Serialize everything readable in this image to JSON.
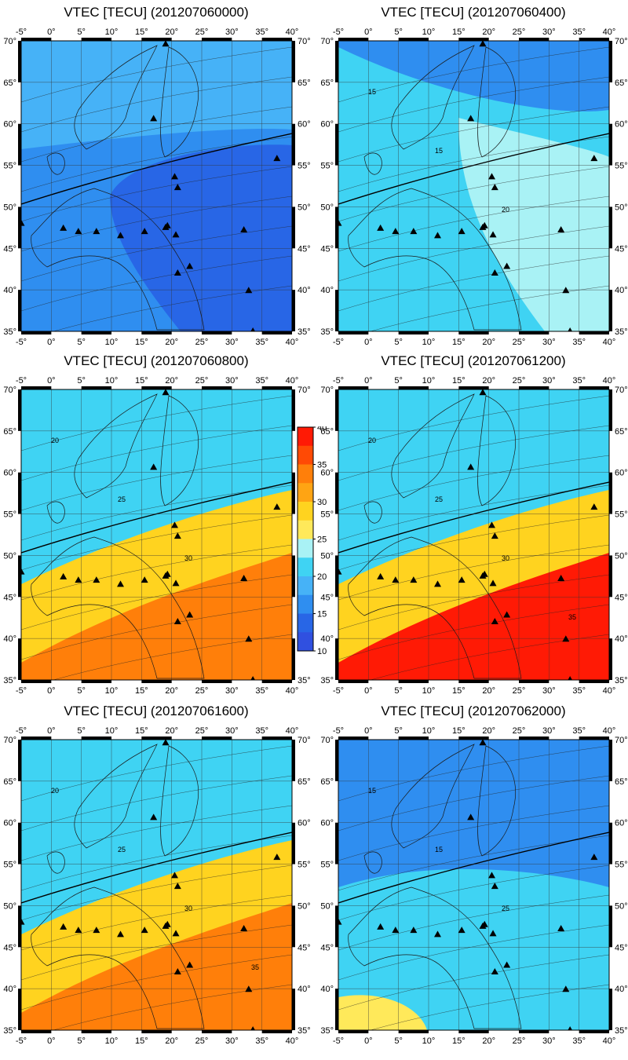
{
  "panels": [
    {
      "title": "VTEC [TECU] (201207060000)",
      "colors": [
        "#46b2f7",
        "#2f8ef0",
        "#2866e6"
      ]
    },
    {
      "title": "VTEC [TECU] (201207060400)",
      "colors": [
        "#2f8ef0",
        "#3fd3f3",
        "#a9f2f5"
      ],
      "contour_labels": [
        "15",
        "15",
        "20"
      ]
    },
    {
      "title": "VTEC [TECU] (201207060800)",
      "colors": [
        "#3fd3f3",
        "#ffd31f",
        "#ff7f0a"
      ],
      "contour_labels": [
        "20",
        "25",
        "30"
      ]
    },
    {
      "title": "VTEC [TECU] (201207061200)",
      "colors": [
        "#3fd3f3",
        "#ffd31f",
        "#ff1a05"
      ],
      "contour_labels": [
        "20",
        "25",
        "30",
        "35"
      ]
    },
    {
      "title": "VTEC [TECU] (201207061600)",
      "colors": [
        "#3fd3f3",
        "#ffd31f",
        "#ff7f0a"
      ],
      "contour_labels": [
        "20",
        "25",
        "30",
        "35"
      ]
    },
    {
      "title": "VTEC [TECU] (201207062000)",
      "colors": [
        "#2f8ef0",
        "#3fd3f3",
        "#ffe95a"
      ],
      "contour_labels": [
        "15",
        "15",
        "25"
      ]
    }
  ],
  "lon_ticks": [
    "-5°",
    "0°",
    "5°",
    "10°",
    "15°",
    "20°",
    "25°",
    "30°",
    "35°",
    "40°"
  ],
  "lat_ticks": [
    "70°",
    "65°",
    "60°",
    "55°",
    "50°",
    "45°",
    "40°",
    "35°"
  ],
  "colorbar": {
    "ticks": [
      "40",
      "35",
      "30",
      "25",
      "20",
      "15",
      "10"
    ],
    "colors": [
      "#ff1a05",
      "#ff4a05",
      "#ff7f0a",
      "#ffa413",
      "#ffd31f",
      "#ffe95a",
      "#a9f2f5",
      "#3fd3f3",
      "#46b2f7",
      "#2f8ef0",
      "#2866e6",
      "#3050e0"
    ]
  },
  "stations": [
    [
      -5,
      48
    ],
    [
      2,
      47.4
    ],
    [
      4.5,
      47
    ],
    [
      7.5,
      47
    ],
    [
      11.5,
      46.5
    ],
    [
      15.5,
      47
    ],
    [
      19,
      47.5
    ],
    [
      19.3,
      47.7
    ],
    [
      20.7,
      46.6
    ],
    [
      21,
      42
    ],
    [
      23,
      42.8
    ],
    [
      17,
      60.6
    ],
    [
      20.5,
      53.6
    ],
    [
      21,
      52.3
    ],
    [
      19,
      69.6
    ],
    [
      32,
      47.2
    ],
    [
      32.8,
      39.9
    ],
    [
      37.5,
      55.8
    ],
    [
      33.5,
      35
    ]
  ]
}
